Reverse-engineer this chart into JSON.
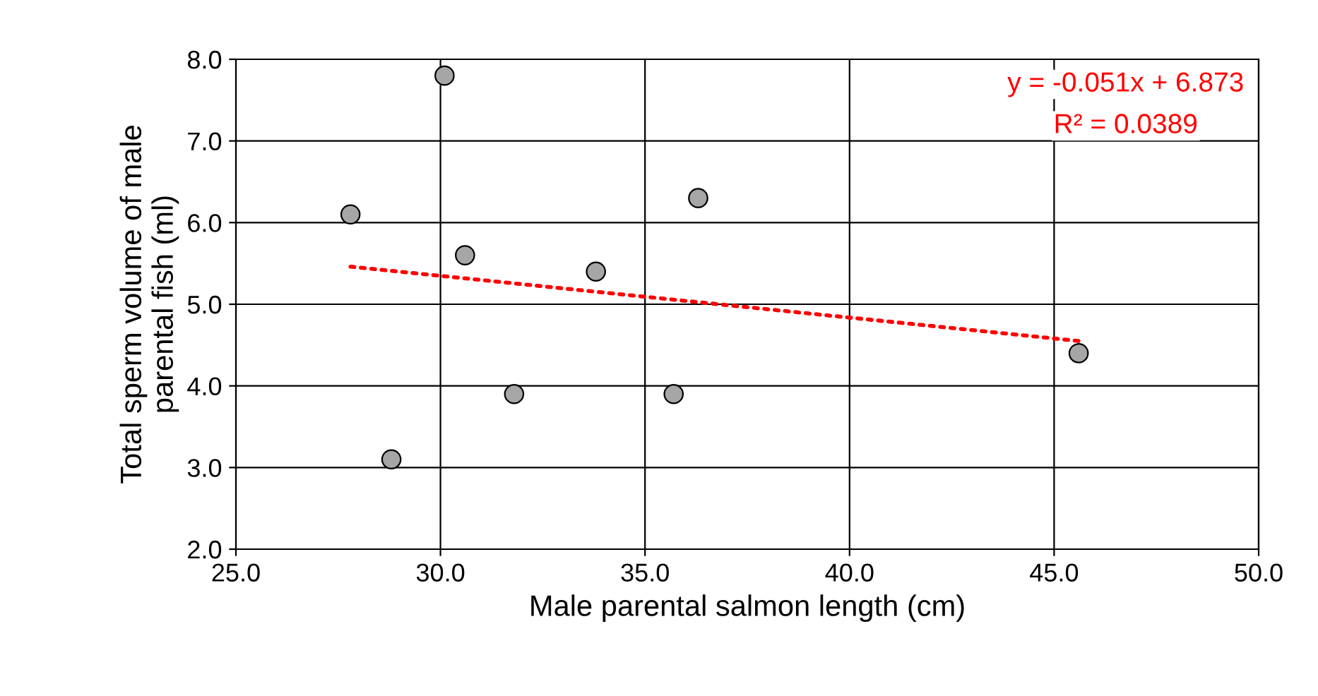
{
  "chart_data": {
    "type": "scatter",
    "xlabel": "Male parental salmon length (cm)",
    "ylabel": "Total sperm volume of male\nparental fish (ml)",
    "xlim": [
      25.0,
      50.0
    ],
    "xticks": [
      {
        "value": 25,
        "label": "25.0"
      },
      {
        "value": 30,
        "label": "30.0"
      },
      {
        "value": 35,
        "label": "35.0"
      },
      {
        "value": 40,
        "label": "40.0"
      },
      {
        "value": 45,
        "label": "45.0"
      },
      {
        "value": 50,
        "label": "50.0"
      }
    ],
    "ylim": [
      2.0,
      8.0
    ],
    "yticks": [
      {
        "value": 2,
        "label": "2.0"
      },
      {
        "value": 3,
        "label": "3.0"
      },
      {
        "value": 4,
        "label": "4.0"
      },
      {
        "value": 5,
        "label": "5.0"
      },
      {
        "value": 6,
        "label": "6.0"
      },
      {
        "value": 7,
        "label": "7.0"
      },
      {
        "value": 8,
        "label": "8.0"
      }
    ],
    "grid": true,
    "series": [
      {
        "marker": "circle",
        "color": "#a6a6a6",
        "x": [
          27.8,
          28.8,
          30.1,
          30.6,
          31.8,
          33.8,
          35.7,
          36.3,
          45.6
        ],
        "values": [
          6.1,
          3.1,
          7.8,
          5.6,
          3.9,
          5.4,
          3.9,
          6.3,
          4.4
        ]
      },
      {
        "type": "line",
        "color": "#ff0000",
        "line_style": "dotted",
        "x": [
          27.8,
          45.6
        ],
        "values": [
          5.46,
          4.55
        ]
      }
    ],
    "annotations": [
      "y = -0.051x + 6.873",
      "R² = 0.0389"
    ]
  }
}
